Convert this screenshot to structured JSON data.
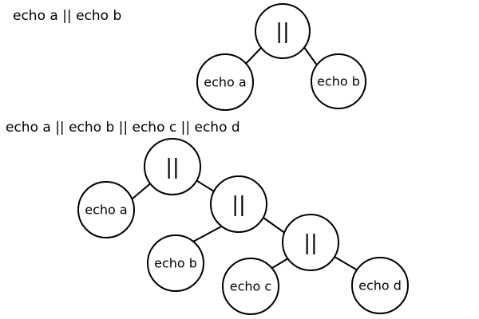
{
  "colors": {
    "stroke": "#000000",
    "node_fill": "#ffffff",
    "background": "#ffffff",
    "text": "#000000"
  },
  "diagrams": [
    {
      "caption": "echo a || echo b",
      "nodes": [
        {
          "label": "||",
          "kind": "operator"
        },
        {
          "label": "echo a",
          "kind": "command"
        },
        {
          "label": "echo b",
          "kind": "command"
        }
      ],
      "edges": [
        [
          "||",
          "echo a"
        ],
        [
          "||",
          "echo b"
        ]
      ]
    },
    {
      "caption": "echo a || echo b || echo c || echo d",
      "nodes": [
        {
          "label": "||",
          "kind": "operator"
        },
        {
          "label": "echo a",
          "kind": "command"
        },
        {
          "label": "||",
          "kind": "operator"
        },
        {
          "label": "echo b",
          "kind": "command"
        },
        {
          "label": "||",
          "kind": "operator"
        },
        {
          "label": "echo c",
          "kind": "command"
        },
        {
          "label": "echo d",
          "kind": "command"
        }
      ],
      "edges": [
        [
          "|| (1)",
          "echo a"
        ],
        [
          "|| (1)",
          "|| (2)"
        ],
        [
          "|| (2)",
          "echo b"
        ],
        [
          "|| (2)",
          "|| (3)"
        ],
        [
          "|| (3)",
          "echo c"
        ],
        [
          "|| (3)",
          "echo d"
        ]
      ]
    }
  ]
}
